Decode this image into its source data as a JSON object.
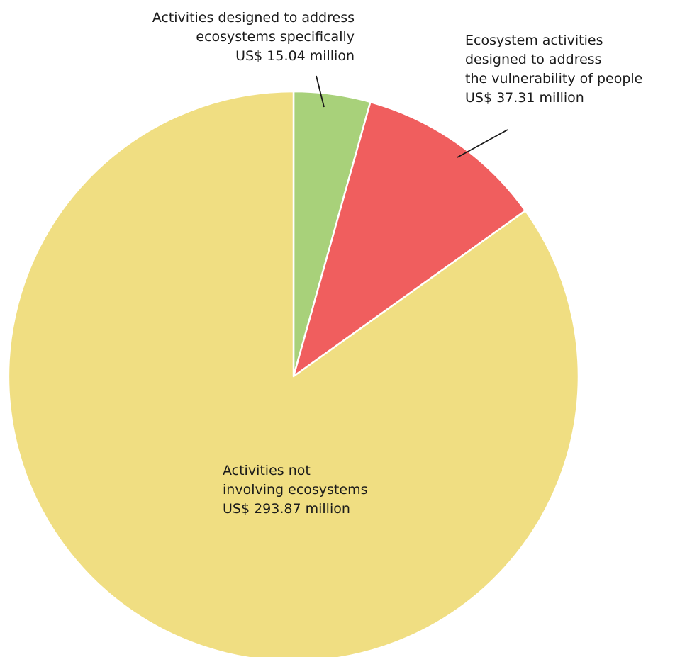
{
  "chart_data": {
    "type": "pie",
    "title": "",
    "slices": [
      {
        "label_lines": [
          "Activities designed to address",
          "ecosystems specifically",
          "US$ 15.04 million"
        ],
        "value": 15.04,
        "unit": "US$ million",
        "color": "#a8d17a"
      },
      {
        "label_lines": [
          "Ecosystem activities",
          "designed to address",
          "the vulnerability of people",
          "US$ 37.31 million"
        ],
        "value": 37.31,
        "unit": "US$ million",
        "color": "#f05e5e"
      },
      {
        "label_lines": [
          "Activities not",
          "involving ecosystems",
          "US$ 293.87 million"
        ],
        "value": 293.87,
        "unit": "US$ million",
        "color": "#f0de82"
      }
    ],
    "start_angle": "12 o'clock",
    "direction": "clockwise",
    "legend": "none (direct labels)"
  }
}
